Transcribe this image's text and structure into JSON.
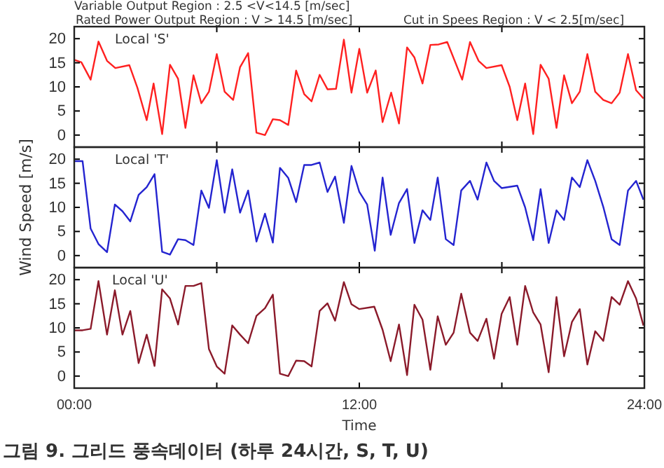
{
  "chart_data": [
    {
      "type": "line",
      "annotations": [
        "Local 'S'",
        "Variable Output Region : 2.5 <V<14.5 [m/sec]",
        "Rated Power Output Region : V > 14.5 [m/sec]",
        "Cut in Spees Region : V < 2.5[m/sec]"
      ],
      "xlim": [
        0,
        24
      ],
      "xticks": [
        {
          "value": 0,
          "label": null
        },
        {
          "value": 6,
          "label": null
        },
        {
          "value": 12,
          "label": null
        },
        {
          "value": 18,
          "label": null
        },
        {
          "value": 24,
          "label": null
        }
      ],
      "ylim": [
        -2.5,
        22.5
      ],
      "yticks": [
        0,
        5,
        10,
        15,
        20
      ],
      "tick_labels": "y",
      "grid": false,
      "marker": "none",
      "line_style": "solid",
      "series": [
        {
          "color": "#ff2020",
          "x": [
            0,
            0.3,
            0.69,
            1.02,
            1.38,
            1.73,
            2.32,
            2.66,
            3.05,
            3.34,
            3.7,
            4.03,
            4.37,
            4.68,
            5.02,
            5.35,
            5.67,
            6.0,
            6.33,
            6.69,
            6.98,
            7.32,
            7.67,
            8.03,
            8.36,
            8.66,
            9.01,
            9.34,
            9.68,
            9.99,
            10.33,
            10.66,
            11.02,
            11.35,
            11.67,
            12.0,
            12.33,
            12.69,
            12.98,
            13.34,
            13.67,
            14.01,
            14.32,
            14.66,
            14.99,
            15.34,
            15.7,
            16.33,
            16.66,
            17.02,
            17.35,
            17.99,
            18.33,
            18.65,
            18.98,
            19.32,
            19.63,
            19.97,
            20.3,
            20.62,
            20.95,
            21.28,
            21.6,
            21.93,
            22.27,
            22.62,
            22.96,
            23.31,
            23.65,
            23.96
          ],
          "values": [
            15.6,
            15.1,
            11.5,
            19.4,
            15.4,
            13.9,
            14.5,
            9.8,
            3.1,
            10.7,
            0.2,
            14.6,
            11.7,
            1.5,
            12.4,
            6.6,
            9.0,
            16.8,
            9.0,
            7.3,
            14.1,
            17.0,
            0.5,
            0,
            3.3,
            3.1,
            2.1,
            13.4,
            8.5,
            7.0,
            12.5,
            9.5,
            9.6,
            19.8,
            8.8,
            17.9,
            8.8,
            13.4,
            2.7,
            8.8,
            2.4,
            18.2,
            16.1,
            10.7,
            18.7,
            18.8,
            19.3,
            11.5,
            19.3,
            15.4,
            13.9,
            14.5,
            10.0,
            3.1,
            10.7,
            0.2,
            14.6,
            11.7,
            1.5,
            12.4,
            6.6,
            9.0,
            16.8,
            9.0,
            7.3,
            6.6,
            8.8,
            16.8,
            9.3,
            7.6
          ]
        }
      ]
    },
    {
      "type": "line",
      "annotations": [
        "Local 'T'"
      ],
      "ylabel": "Wind Speed [m/s]",
      "xlim": [
        0,
        24
      ],
      "xticks": [
        {
          "value": 0,
          "label": null
        },
        {
          "value": 6,
          "label": null
        },
        {
          "value": 12,
          "label": null
        },
        {
          "value": 18,
          "label": null
        },
        {
          "value": 24,
          "label": null
        }
      ],
      "ylim": [
        -2.5,
        22.5
      ],
      "yticks": [
        0,
        5,
        10,
        15,
        20
      ],
      "tick_labels": "y",
      "grid": false,
      "marker": "none",
      "line_style": "solid",
      "series": [
        {
          "color": "#2424d0",
          "x": [
            0,
            0.35,
            0.69,
            1.02,
            1.38,
            1.71,
            2.03,
            2.36,
            2.71,
            3.05,
            3.38,
            3.7,
            4.03,
            4.37,
            4.68,
            5.02,
            5.35,
            5.67,
            6.0,
            6.33,
            6.65,
            6.98,
            7.32,
            7.67,
            8.03,
            8.36,
            8.66,
            9.01,
            9.34,
            9.68,
            9.99,
            10.33,
            10.66,
            10.98,
            11.35,
            11.67,
            12.0,
            12.33,
            12.65,
            12.98,
            13.32,
            13.67,
            14.01,
            14.32,
            14.66,
            14.99,
            15.3,
            15.64,
            15.97,
            16.29,
            16.66,
            16.98,
            17.35,
            17.67,
            17.99,
            18.65,
            18.98,
            19.32,
            19.63,
            19.97,
            20.3,
            20.62,
            20.95,
            21.28,
            21.6,
            21.93,
            22.27,
            22.62,
            22.96,
            23.31,
            23.65,
            23.96
          ],
          "values": [
            19.6,
            19.6,
            5.6,
            2.4,
            0.7,
            10.6,
            9.2,
            7.1,
            12.6,
            14.2,
            16.9,
            0.8,
            0.2,
            3.4,
            3.2,
            2.2,
            13.5,
            9.9,
            19.8,
            8.9,
            17.9,
            8.9,
            13.5,
            2.9,
            8.7,
            2.7,
            18.2,
            16.1,
            11.1,
            18.8,
            18.8,
            19.3,
            13.2,
            16.4,
            6.8,
            18.6,
            13.2,
            10.6,
            1.0,
            16.2,
            4.3,
            10.9,
            13.8,
            2.6,
            9.4,
            7.4,
            16.2,
            3.4,
            2.2,
            13.5,
            15.5,
            11.6,
            19.3,
            15.5,
            14.0,
            14.5,
            10.0,
            3.2,
            13.8,
            2.6,
            9.4,
            7.4,
            16.2,
            14.2,
            19.8,
            15.5,
            10.1,
            3.4,
            2.2,
            13.5,
            15.5,
            11.6
          ]
        }
      ]
    },
    {
      "type": "line",
      "annotations": [
        "Local 'U'",
        "그림 9. 그리드 풍속데이터 (하루 24시간, S, T, U)"
      ],
      "xlabel": "Time",
      "xlim": [
        0,
        24
      ],
      "xticks": [
        {
          "value": 0,
          "label": "00:00"
        },
        {
          "value": 6,
          "label": null
        },
        {
          "value": 12,
          "label": "12:00"
        },
        {
          "value": 18,
          "label": null
        },
        {
          "value": 24,
          "label": "24:00"
        }
      ],
      "ylim": [
        -2.5,
        22.5
      ],
      "yticks": [
        0,
        5,
        10,
        15,
        20
      ],
      "grid": false,
      "marker": "none",
      "line_style": "solid",
      "series": [
        {
          "color": "#8b1a2a",
          "x": [
            0,
            0.35,
            0.69,
            1.02,
            1.38,
            1.71,
            2.03,
            2.36,
            2.71,
            3.05,
            3.38,
            3.7,
            4.03,
            4.37,
            4.68,
            5.02,
            5.35,
            5.67,
            6.0,
            6.33,
            6.65,
            6.98,
            7.32,
            7.67,
            8.03,
            8.36,
            8.66,
            9.01,
            9.34,
            9.68,
            9.99,
            10.33,
            10.66,
            10.98,
            11.35,
            11.67,
            12.0,
            12.63,
            12.98,
            13.32,
            13.67,
            14.01,
            14.32,
            14.66,
            14.99,
            15.3,
            15.64,
            15.97,
            16.29,
            16.66,
            16.98,
            17.35,
            17.67,
            17.99,
            18.33,
            18.65,
            18.98,
            19.32,
            19.63,
            19.97,
            20.3,
            20.62,
            20.95,
            21.28,
            21.6,
            21.93,
            22.27,
            22.62,
            22.96,
            23.31,
            23.65,
            23.96
          ],
          "values": [
            9.5,
            9.5,
            9.8,
            19.7,
            8.6,
            17.8,
            8.6,
            13.5,
            2.7,
            8.6,
            2.1,
            18.0,
            16.1,
            10.7,
            18.7,
            18.7,
            19.3,
            5.6,
            2.0,
            0.5,
            10.5,
            8.6,
            6.8,
            12.5,
            14.1,
            16.9,
            0.5,
            0,
            3.2,
            3.1,
            2.0,
            13.5,
            15.1,
            11.5,
            19.5,
            14.9,
            13.9,
            14.4,
            9.6,
            3.1,
            10.7,
            0.2,
            14.8,
            11.7,
            1.3,
            12.4,
            6.5,
            9.0,
            17.1,
            9.0,
            7.3,
            11.9,
            3.6,
            12.9,
            16.4,
            6.5,
            18.7,
            13.2,
            10.7,
            0.8,
            16.4,
            4.1,
            11.2,
            13.9,
            2.4,
            9.3,
            7.3,
            16.4,
            14.8,
            19.7,
            16.1,
            10.5
          ]
        }
      ]
    }
  ]
}
